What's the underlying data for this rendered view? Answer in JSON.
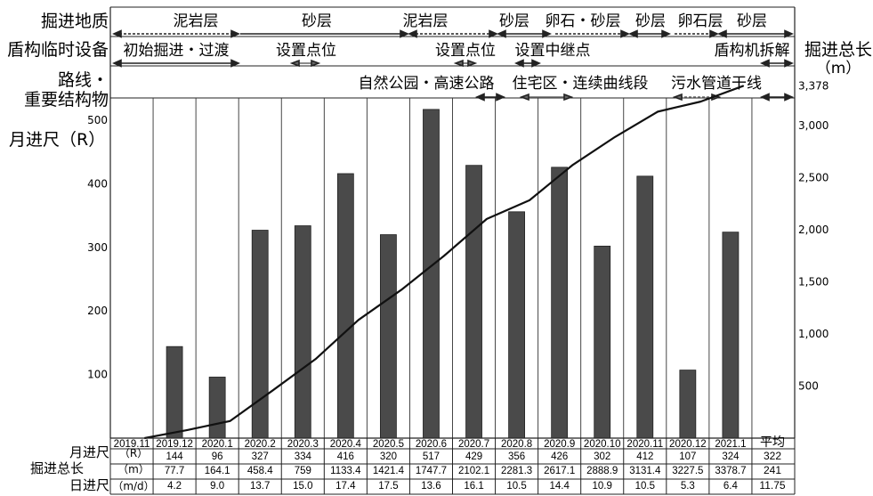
{
  "row_headers": {
    "geology": "掘进地质",
    "equipment": "盾构临时设备",
    "route_line1": "路线・",
    "route_line2": "重要结构物",
    "monthly_progress": "月进尺（R）"
  },
  "right_axis_title": {
    "line1": "掘进总长",
    "line2": "（m）"
  },
  "geology": [
    "泥岩层",
    "砂层",
    "泥岩层",
    "砂层",
    "卵石・砂层",
    "砂层",
    "卵石层",
    "砂层"
  ],
  "equipment": [
    "初始掘进・过渡",
    "设置点位",
    "设置点位",
    "设置中继点",
    "盾构机拆解"
  ],
  "structures": [
    "自然公园・高速公路",
    "住宅区・连续曲线段",
    "污水管道干线"
  ],
  "left_ticks": [
    "100",
    "200",
    "300",
    "400",
    "500"
  ],
  "right_ticks": [
    "500",
    "1,000",
    "1,500",
    "2,000",
    "2,500",
    "3,000",
    "3,378"
  ],
  "table": {
    "row_labels": [
      "月进尺",
      "掘进总长",
      "日进尺"
    ],
    "units": [
      "（R）",
      "（m）",
      "（m/d）"
    ],
    "average_label": "平均",
    "averages": [
      "322",
      "241",
      "11.75"
    ]
  },
  "chart_data": {
    "type": "bar+line",
    "categories": [
      "2019.11",
      "2019.12",
      "2020.1",
      "2020.2",
      "2020.3",
      "2020.4",
      "2020.5",
      "2020.6",
      "2020.7",
      "2020.8",
      "2020.9",
      "2020.10",
      "2020.11",
      "2020.12",
      "2021.1"
    ],
    "series": [
      {
        "name": "月进尺",
        "type": "bar",
        "axis": "left",
        "values": [
          null,
          144,
          96,
          327,
          334,
          416,
          320,
          517,
          429,
          356,
          426,
          302,
          412,
          107,
          324
        ]
      },
      {
        "name": "掘进总长",
        "type": "line",
        "axis": "right",
        "values": [
          0,
          77.7,
          164.1,
          458.4,
          759,
          1133.4,
          1421.4,
          1747.7,
          2102.1,
          2281.3,
          2617.1,
          2888.9,
          3131.4,
          3227.5,
          3378.7
        ]
      }
    ],
    "monthly_R": [
      "",
      "144",
      "96",
      "327",
      "334",
      "416",
      "320",
      "517",
      "429",
      "356",
      "426",
      "302",
      "412",
      "107",
      "324"
    ],
    "cumulative_m": [
      "",
      "77.7",
      "164.1",
      "458.4",
      "759",
      "1133.4",
      "1421.4",
      "1747.7",
      "2102.1",
      "2281.3",
      "2617.1",
      "2888.9",
      "3131.4",
      "3227.5",
      "3378.7"
    ],
    "daily_md": [
      "",
      "4.2",
      "9.0",
      "13.7",
      "15.0",
      "17.4",
      "17.5",
      "13.6",
      "16.1",
      "10.5",
      "14.4",
      "10.9",
      "10.5",
      "5.3",
      "6.4"
    ],
    "ylim_left": [
      0,
      560
    ],
    "ylim_right": [
      0,
      3378
    ],
    "grid": "vertical"
  }
}
